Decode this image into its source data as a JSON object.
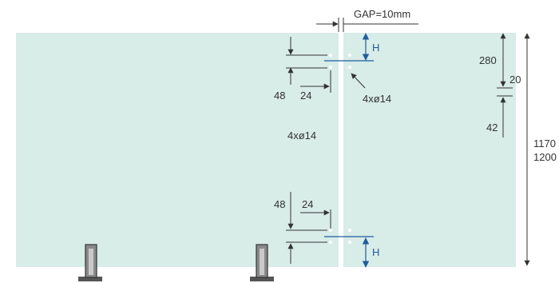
{
  "colors": {
    "glass": "#d8ece8",
    "gap": "#ffffff",
    "dim_line": "#333333",
    "accent_blue": "#1f5d9c",
    "post": "#8a8a8a"
  },
  "labels": {
    "gap": "GAP=10mm",
    "h_top": "H",
    "h_bottom": "H",
    "dim_280": "280",
    "dim_20": "20",
    "dim_42": "42",
    "dim_48_top": "48",
    "dim_24_top": "24",
    "holes_right": "4xø14",
    "holes_left": "4xø14",
    "dim_48_bottom": "48",
    "dim_24_bottom": "24",
    "height_1170": "1170",
    "height_1200": "1200"
  }
}
